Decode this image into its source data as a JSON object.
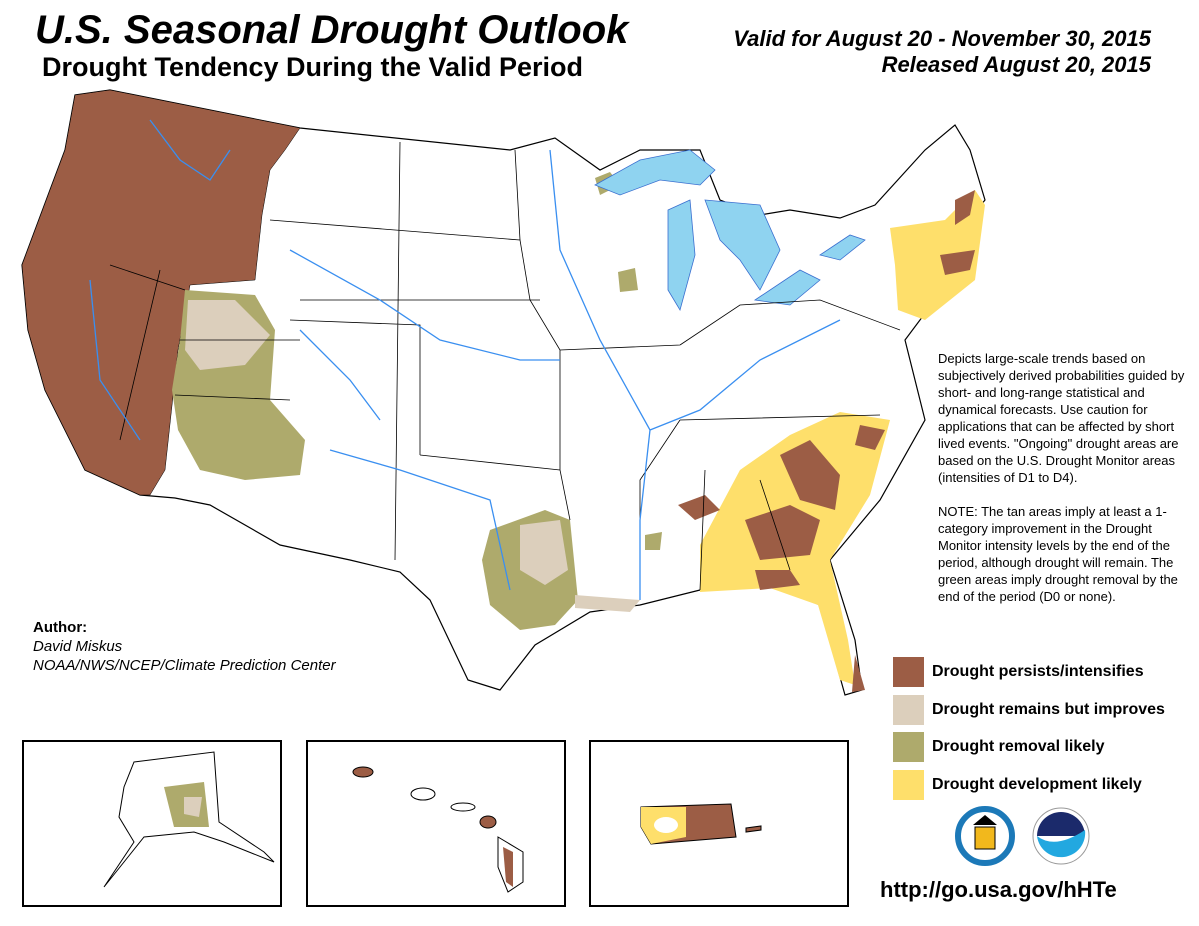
{
  "header": {
    "title": "U.S. Seasonal Drought Outlook",
    "subtitle": "Drought Tendency During the Valid Period",
    "valid": "Valid for August 20 - November 30, 2015",
    "released": "Released August 20, 2015"
  },
  "description": {
    "paragraph1": "Depicts large-scale trends based on subjectively derived probabilities guided by short- and long-range statistical and dynamical forecasts. Use caution for applications that can be affected by short lived events. \"Ongoing\" drought areas are based on the U.S. Drought Monitor areas (intensities of D1 to D4).",
    "paragraph2": "NOTE: The tan areas imply at least a 1-category improvement in the Drought Monitor intensity levels by the end of the period, although drought will remain. The green areas imply drought removal by the end of the period (D0 or none)."
  },
  "legend": [
    {
      "label": "Drought persists/intensifies",
      "color": "#9c5d45"
    },
    {
      "label": "Drought remains but improves",
      "color": "#dccfbc"
    },
    {
      "label": "Drought removal likely",
      "color": "#aeaa6c"
    },
    {
      "label": "Drought development likely",
      "color": "#fedf6b"
    }
  ],
  "author": {
    "heading": "Author:",
    "name": "David Miskus",
    "org": "NOAA/NWS/NCEP/Climate Prediction Center"
  },
  "colors": {
    "water": "#8fd3f0",
    "river": "#3a8ff0"
  },
  "logos": [
    "Department of Commerce seal",
    "NOAA"
  ],
  "url": "http://go.usa.gov/hHTe"
}
